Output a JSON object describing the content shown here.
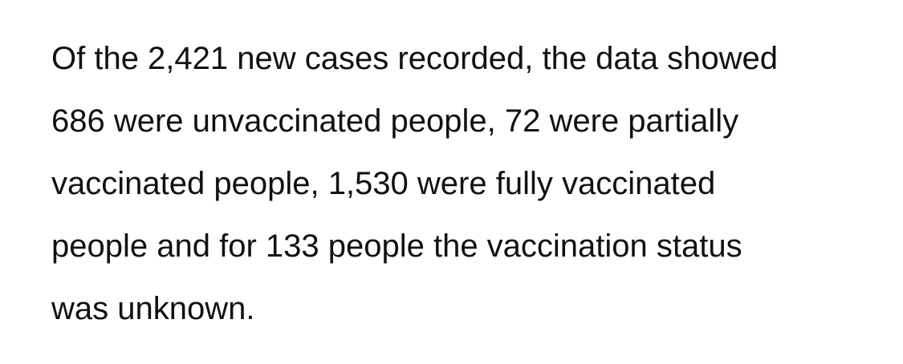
{
  "article": {
    "lines": [
      "Of the 2,421 new cases recorded, the data showed",
      "686 were unvaccinated people, 72 were partially",
      "vaccinated people, 1,530 were fully vaccinated",
      "people and for 133 people the vaccination status",
      "was unknown."
    ]
  }
}
